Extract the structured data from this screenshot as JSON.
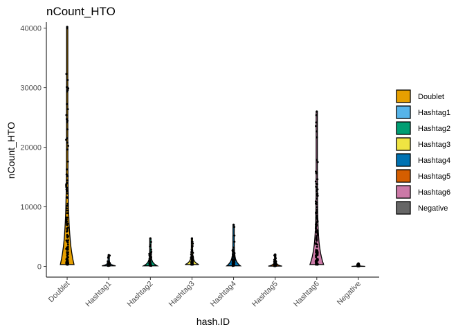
{
  "chart_data": {
    "type": "violin",
    "title": "nCount_HTO",
    "xlabel": "hash.ID",
    "ylabel": "nCount_HTO",
    "ylim": [
      -1800,
      41000
    ],
    "yticks": [
      0,
      10000,
      20000,
      30000,
      40000
    ],
    "grid": false,
    "legend_position": "right",
    "categories": [
      "Doublet",
      "Hashtag1",
      "Hashtag2",
      "Hashtag3",
      "Hashtag4",
      "Hashtag5",
      "Hashtag6",
      "Negative"
    ],
    "colors": [
      "#E69F00",
      "#56B4E9",
      "#009E73",
      "#F0E442",
      "#0072B2",
      "#D55E00",
      "#CC79A7",
      "#666666"
    ],
    "summary": [
      {
        "category": "Doublet",
        "min": 300,
        "max": 40200,
        "bulk_max": 16000
      },
      {
        "category": "Hashtag1",
        "min": 100,
        "max": 1900,
        "bulk_max": 1000
      },
      {
        "category": "Hashtag2",
        "min": 100,
        "max": 4700,
        "bulk_max": 2500
      },
      {
        "category": "Hashtag3",
        "min": 300,
        "max": 4700,
        "bulk_max": 2800
      },
      {
        "category": "Hashtag4",
        "min": 100,
        "max": 7000,
        "bulk_max": 3500
      },
      {
        "category": "Hashtag5",
        "min": 50,
        "max": 2000,
        "bulk_max": 900
      },
      {
        "category": "Hashtag6",
        "min": 300,
        "max": 26000,
        "bulk_max": 15000
      },
      {
        "category": "Negative",
        "min": 0,
        "max": 500,
        "bulk_max": 400
      }
    ]
  }
}
